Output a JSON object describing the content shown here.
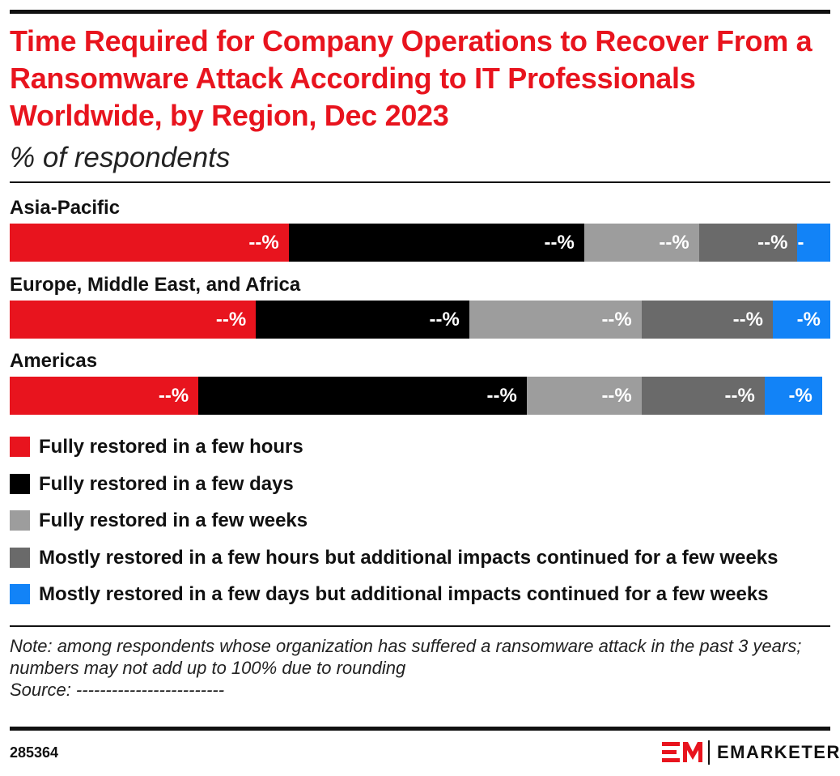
{
  "chart_data": {
    "type": "bar",
    "orientation": "horizontal",
    "stacked": true,
    "title": "Time Required for Company Operations to Recover From a Ransomware Attack According to IT Professionals Worldwide, by Region, Dec 2023",
    "subtitle": "% of respondents",
    "categories": [
      "Asia-Pacific",
      "Europe, Middle East, and Africa",
      "Americas"
    ],
    "xlim": [
      0,
      100
    ],
    "series": [
      {
        "name": "Fully restored in a few hours",
        "color": "#e8141e",
        "values": [
          34,
          30,
          23
        ],
        "value_labels": [
          "--%",
          "--%",
          "--%"
        ]
      },
      {
        "name": "Fully restored in a few days",
        "color": "#000000",
        "values": [
          36,
          26,
          40
        ],
        "value_labels": [
          "--%",
          "--%",
          "--%"
        ]
      },
      {
        "name": "Fully restored in a few weeks",
        "color": "#9d9d9d",
        "values": [
          14,
          21,
          14
        ],
        "value_labels": [
          "--%",
          "--%",
          "--%"
        ]
      },
      {
        "name": "Mostly restored in a few hours but additional impacts continued for a few weeks",
        "color": "#6a6a6a",
        "values": [
          12,
          16,
          15
        ],
        "value_labels": [
          "--%",
          "--%",
          "--%"
        ]
      },
      {
        "name": "Mostly restored in a few days but additional impacts continued for a few weeks",
        "color": "#1283f7",
        "values": [
          4,
          7,
          7
        ],
        "value_labels": [
          "-%",
          "-%",
          "-%"
        ]
      }
    ],
    "note": "Note: among respondents whose organization has suffered a ransomware attack in the past 3 years; numbers may not add up to 100% due to rounding",
    "source": "Source: -------------------------",
    "chart_id": "285364",
    "brand": "EMARKETER"
  }
}
